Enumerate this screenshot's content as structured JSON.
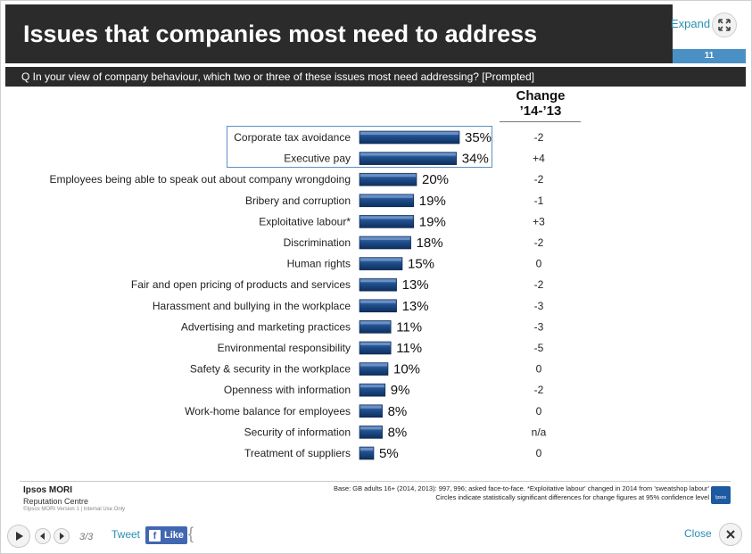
{
  "header": {
    "title": "Issues that companies most need to address",
    "expand_label": "Expand",
    "page_number": "11",
    "question": "Q In your view of company behaviour, which two or three of these issues most need addressing? [Prompted]"
  },
  "chart_data": {
    "type": "bar",
    "orientation": "horizontal",
    "categories": [
      "Corporate tax avoidance",
      "Executive pay",
      "Employees being able to speak out about company wrongdoing",
      "Bribery and corruption",
      "Exploitative labour*",
      "Discrimination",
      "Human rights",
      "Fair and open pricing of products and services",
      "Harassment and bullying in the workplace",
      "Advertising and marketing practices",
      "Environmental responsibility",
      "Safety & security in the workplace",
      "Openness with information",
      "Work-home balance for employees",
      "Security of information",
      "Treatment of suppliers"
    ],
    "values": [
      35,
      34,
      20,
      19,
      19,
      18,
      15,
      13,
      13,
      11,
      11,
      10,
      9,
      8,
      8,
      5
    ],
    "value_labels": [
      "35%",
      "34%",
      "20%",
      "19%",
      "19%",
      "18%",
      "15%",
      "13%",
      "13%",
      "11%",
      "11%",
      "10%",
      "9%",
      "8%",
      "8%",
      "5%"
    ],
    "change_header_line1": "Change",
    "change_header_line2": "’14-’13",
    "change": [
      "-2",
      "+4",
      "-2",
      "-1",
      "+3",
      "-2",
      "0",
      "-2",
      "-3",
      "-3",
      "-5",
      "0",
      "-2",
      "0",
      "n/a",
      "0"
    ],
    "highlighted_categories": [
      "Corporate tax avoidance",
      "Executive pay"
    ],
    "bar_color": "#1f4e8c",
    "highlight_color": "#5b8fc4"
  },
  "footer": {
    "brand_name": "Ipsos MORI",
    "brand_unit": "Reputation Centre",
    "brand_small": "©Ipsos MORI     Version 1 | Internal Use Only",
    "base_note": "Base: GB adults 16+ (2014, 2013): 997, 996; asked face-to-face.  *Exploitative labour' changed in 2014 from 'sweatshop labour'",
    "circles_note": "Circles indicate statistically significant differences for change figures at 95% confidence level",
    "logo_text": "Ipsos"
  },
  "controls": {
    "slide_counter": "3/3",
    "tweet_label": "Tweet",
    "like_label": "Like",
    "close_label": "Close"
  }
}
